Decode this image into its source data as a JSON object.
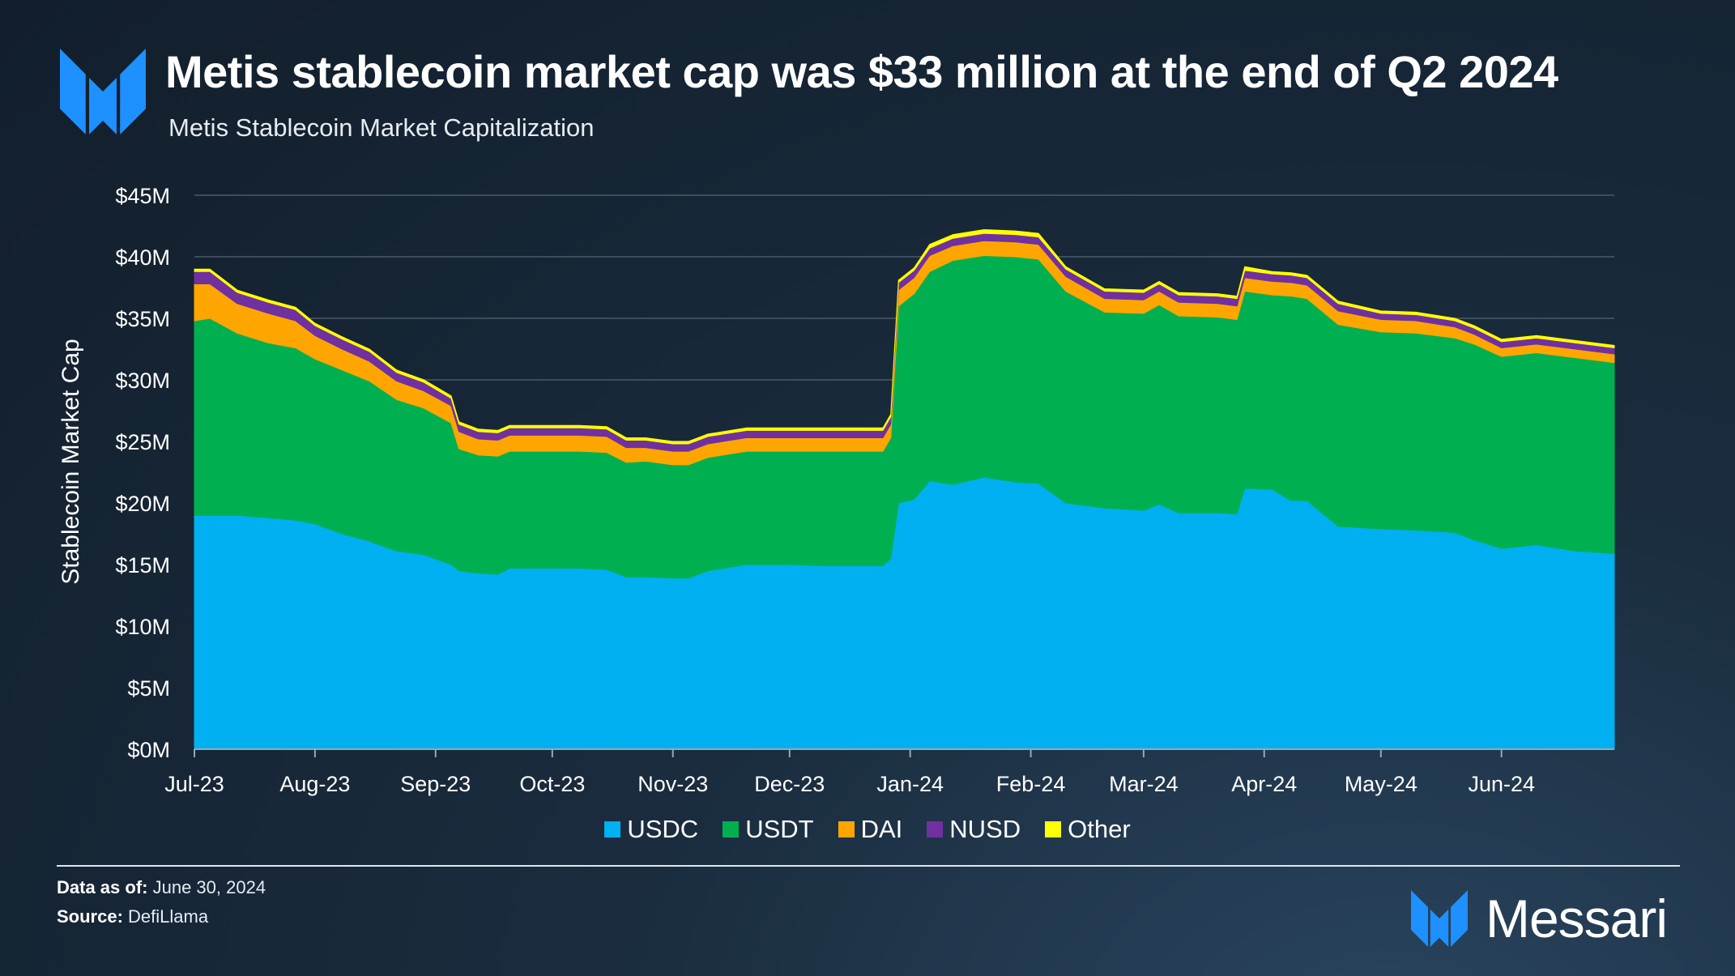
{
  "header": {
    "title": "Metis stablecoin market cap was $33 million at the end of Q2 2024",
    "subtitle": "Metis Stablecoin Market Capitalization"
  },
  "footer": {
    "data_as_of_label": "Data as of:",
    "data_as_of_value": "June 30, 2024",
    "source_label": "Source:",
    "source_value": "DefiLlama",
    "brand": "Messari"
  },
  "colors": {
    "USDC": "#00b0f0",
    "USDT": "#00b050",
    "DAI": "#ffa500",
    "NUSD": "#7030a0",
    "Other": "#ffff00",
    "brand_blue": "#1e90ff"
  },
  "chart_data": {
    "type": "area",
    "stacked": true,
    "title": "Metis Stablecoin Market Capitalization",
    "xlabel": "",
    "ylabel": "Stablecoin Market Cap",
    "ylim": [
      0,
      45
    ],
    "y_unit": "M USD",
    "yticks": [
      0,
      5,
      10,
      15,
      20,
      25,
      30,
      35,
      40,
      45
    ],
    "ytick_labels": [
      "$0M",
      "$5M",
      "$10M",
      "$15M",
      "$20M",
      "$25M",
      "$30M",
      "$35M",
      "$40M",
      "$45M"
    ],
    "xtick_dates": [
      "2023-07-01",
      "2023-08-01",
      "2023-09-01",
      "2023-10-01",
      "2023-11-01",
      "2023-12-01",
      "2024-01-01",
      "2024-02-01",
      "2024-03-01",
      "2024-04-01",
      "2024-05-01",
      "2024-06-01"
    ],
    "xtick_labels": [
      "Jul-23",
      "Aug-23",
      "Sep-23",
      "Oct-23",
      "Nov-23",
      "Dec-23",
      "Jan-24",
      "Feb-24",
      "Mar-24",
      "Apr-24",
      "May-24",
      "Jun-24"
    ],
    "grid": true,
    "legend_position": "bottom",
    "x": [
      "2023-07-01",
      "2023-07-05",
      "2023-07-12",
      "2023-07-20",
      "2023-07-27",
      "2023-08-01",
      "2023-08-08",
      "2023-08-15",
      "2023-08-22",
      "2023-08-29",
      "2023-09-05",
      "2023-09-07",
      "2023-09-12",
      "2023-09-17",
      "2023-09-20",
      "2023-09-25",
      "2023-10-01",
      "2023-10-08",
      "2023-10-15",
      "2023-10-20",
      "2023-10-25",
      "2023-11-01",
      "2023-11-05",
      "2023-11-10",
      "2023-11-20",
      "2023-11-25",
      "2023-12-01",
      "2023-12-10",
      "2023-12-20",
      "2023-12-25",
      "2023-12-27",
      "2023-12-29",
      "2024-01-02",
      "2024-01-06",
      "2024-01-12",
      "2024-01-20",
      "2024-01-28",
      "2024-02-03",
      "2024-02-10",
      "2024-02-20",
      "2024-03-01",
      "2024-03-05",
      "2024-03-10",
      "2024-03-20",
      "2024-03-25",
      "2024-03-27",
      "2024-04-03",
      "2024-04-08",
      "2024-04-12",
      "2024-04-20",
      "2024-05-01",
      "2024-05-10",
      "2024-05-20",
      "2024-05-25",
      "2024-06-01",
      "2024-06-10",
      "2024-06-20",
      "2024-06-30"
    ],
    "series": [
      {
        "name": "USDC",
        "values": [
          19.0,
          19.0,
          19.0,
          18.8,
          18.6,
          18.3,
          17.5,
          16.9,
          16.1,
          15.8,
          15.0,
          14.5,
          14.3,
          14.2,
          14.7,
          14.7,
          14.7,
          14.7,
          14.6,
          14.0,
          14.0,
          13.9,
          13.9,
          14.5,
          15.0,
          15.0,
          15.0,
          14.9,
          14.9,
          14.9,
          15.5,
          20.0,
          20.3,
          21.8,
          21.5,
          22.1,
          21.7,
          21.6,
          20.0,
          19.6,
          19.4,
          19.9,
          19.2,
          19.2,
          19.1,
          21.2,
          21.1,
          20.2,
          20.2,
          18.1,
          17.9,
          17.8,
          17.6,
          17.0,
          16.3,
          16.6,
          16.1,
          15.9
        ]
      },
      {
        "name": "USDT",
        "values": [
          15.8,
          16.0,
          14.8,
          14.2,
          14.0,
          13.4,
          13.3,
          13.0,
          12.3,
          11.9,
          11.5,
          9.9,
          9.6,
          9.6,
          9.5,
          9.5,
          9.5,
          9.5,
          9.5,
          9.3,
          9.4,
          9.2,
          9.2,
          9.2,
          9.2,
          9.2,
          9.2,
          9.3,
          9.3,
          9.3,
          9.8,
          16.0,
          16.7,
          17.0,
          18.2,
          18.0,
          18.3,
          18.2,
          17.2,
          15.9,
          16.0,
          16.2,
          16.0,
          15.9,
          15.8,
          16.0,
          15.8,
          16.6,
          16.4,
          16.4,
          16.0,
          16.0,
          15.8,
          15.9,
          15.6,
          15.6,
          15.7,
          15.5
        ]
      },
      {
        "name": "DAI",
        "values": [
          3.0,
          2.8,
          2.4,
          2.4,
          2.2,
          1.9,
          1.7,
          1.6,
          1.5,
          1.4,
          1.4,
          1.4,
          1.3,
          1.3,
          1.3,
          1.3,
          1.3,
          1.3,
          1.3,
          1.2,
          1.1,
          1.1,
          1.1,
          1.1,
          1.1,
          1.1,
          1.1,
          1.1,
          1.1,
          1.1,
          1.1,
          1.3,
          1.3,
          1.3,
          1.2,
          1.2,
          1.2,
          1.2,
          1.2,
          1.1,
          1.1,
          1.1,
          1.1,
          1.1,
          1.1,
          1.1,
          1.1,
          1.1,
          1.1,
          1.1,
          1.0,
          1.0,
          0.9,
          0.8,
          0.7,
          0.7,
          0.7,
          0.7
        ]
      },
      {
        "name": "NUSD",
        "values": [
          1.0,
          1.0,
          0.9,
          0.9,
          0.9,
          0.8,
          0.8,
          0.8,
          0.7,
          0.7,
          0.6,
          0.6,
          0.6,
          0.6,
          0.6,
          0.6,
          0.6,
          0.6,
          0.6,
          0.6,
          0.6,
          0.6,
          0.6,
          0.6,
          0.6,
          0.6,
          0.6,
          0.6,
          0.6,
          0.6,
          0.6,
          0.6,
          0.6,
          0.6,
          0.6,
          0.6,
          0.6,
          0.6,
          0.6,
          0.6,
          0.6,
          0.6,
          0.6,
          0.6,
          0.6,
          0.6,
          0.6,
          0.6,
          0.6,
          0.6,
          0.5,
          0.5,
          0.5,
          0.5,
          0.5,
          0.5,
          0.5,
          0.5
        ]
      },
      {
        "name": "Other",
        "values": [
          0.2,
          0.2,
          0.2,
          0.2,
          0.2,
          0.2,
          0.2,
          0.2,
          0.2,
          0.2,
          0.2,
          0.2,
          0.2,
          0.2,
          0.2,
          0.2,
          0.2,
          0.2,
          0.2,
          0.2,
          0.2,
          0.2,
          0.2,
          0.2,
          0.2,
          0.2,
          0.2,
          0.2,
          0.2,
          0.2,
          0.2,
          0.2,
          0.2,
          0.3,
          0.3,
          0.3,
          0.3,
          0.3,
          0.2,
          0.2,
          0.2,
          0.2,
          0.2,
          0.2,
          0.2,
          0.3,
          0.2,
          0.2,
          0.2,
          0.2,
          0.2,
          0.2,
          0.2,
          0.2,
          0.2,
          0.2,
          0.2,
          0.2
        ]
      }
    ]
  }
}
